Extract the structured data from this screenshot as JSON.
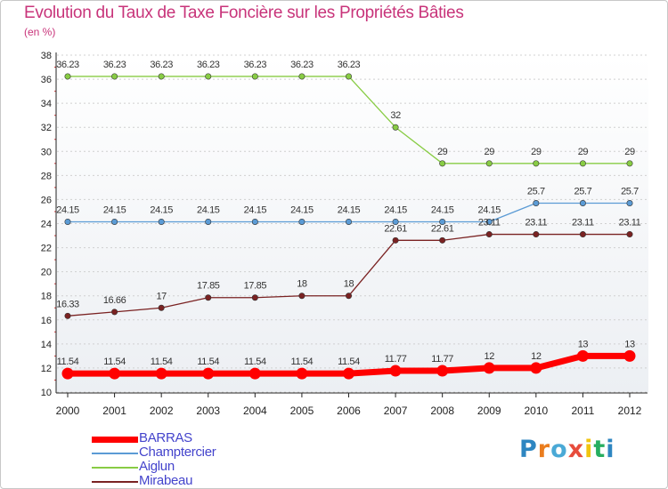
{
  "colors": {
    "title": "#c8347a",
    "legend_text": "#4444cc",
    "axis": "#222222",
    "grid": "#d0d0d0"
  },
  "chart_data": {
    "type": "line",
    "title": "Evolution du Taux de Taxe Foncière sur les Propriétés Bâties",
    "ylabel": "(en %)",
    "xlabel": "",
    "ylim": [
      10,
      38
    ],
    "yticks": [
      10,
      12,
      14,
      16,
      18,
      20,
      22,
      24,
      26,
      28,
      30,
      32,
      34,
      36,
      38
    ],
    "x": [
      "2000",
      "2001",
      "2002",
      "2003",
      "2004",
      "2005",
      "2006",
      "2007",
      "2008",
      "2009",
      "2010",
      "2011",
      "2012"
    ],
    "grid": true,
    "legend_position": "bottom-left",
    "series": [
      {
        "name": "BARRAS",
        "color": "#ff0000",
        "values": [
          11.54,
          11.54,
          11.54,
          11.54,
          11.54,
          11.54,
          11.54,
          11.77,
          11.77,
          12,
          12,
          13,
          13
        ],
        "labels": [
          "11.54",
          "11.54",
          "11.54",
          "11.54",
          "11.54",
          "11.54",
          "11.54",
          "11.77",
          "11.77",
          "12",
          "12",
          "13",
          "13"
        ]
      },
      {
        "name": "Champtercier",
        "color": "#5b9bd5",
        "values": [
          24.15,
          24.15,
          24.15,
          24.15,
          24.15,
          24.15,
          24.15,
          24.15,
          24.15,
          24.15,
          25.7,
          25.7,
          25.7
        ],
        "labels": [
          "24.15",
          "24.15",
          "24.15",
          "24.15",
          "24.15",
          "24.15",
          "24.15",
          "24.15",
          "24.15",
          "24.15",
          "25.7",
          "25.7",
          "25.7"
        ]
      },
      {
        "name": "Aiglun",
        "color": "#88cc44",
        "values": [
          36.23,
          36.23,
          36.23,
          36.23,
          36.23,
          36.23,
          36.23,
          32,
          29,
          29,
          29,
          29,
          29
        ],
        "labels": [
          "36.23",
          "36.23",
          "36.23",
          "36.23",
          "36.23",
          "36.23",
          "36.23",
          "32",
          "29",
          "29",
          "29",
          "29",
          "29"
        ]
      },
      {
        "name": "Mirabeau",
        "color": "#7a2222",
        "values": [
          16.33,
          16.66,
          17,
          17.85,
          17.85,
          18,
          18,
          22.61,
          22.61,
          23.11,
          23.11,
          23.11,
          23.11
        ],
        "labels": [
          "16.33",
          "16.66",
          "17",
          "17.85",
          "17.85",
          "18",
          "18",
          "22.61",
          "22.61",
          "23.11",
          "23.11",
          "23.11",
          "23.11"
        ]
      }
    ]
  },
  "logo": {
    "letters": [
      "P",
      "r",
      "o",
      "x",
      "i",
      "t",
      "i"
    ],
    "colors": [
      "#2e86c1",
      "#ea7d1e",
      "#4aa9d6",
      "#e74c3c",
      "#f1c40f",
      "#27ae60",
      "#2e86c1"
    ]
  }
}
